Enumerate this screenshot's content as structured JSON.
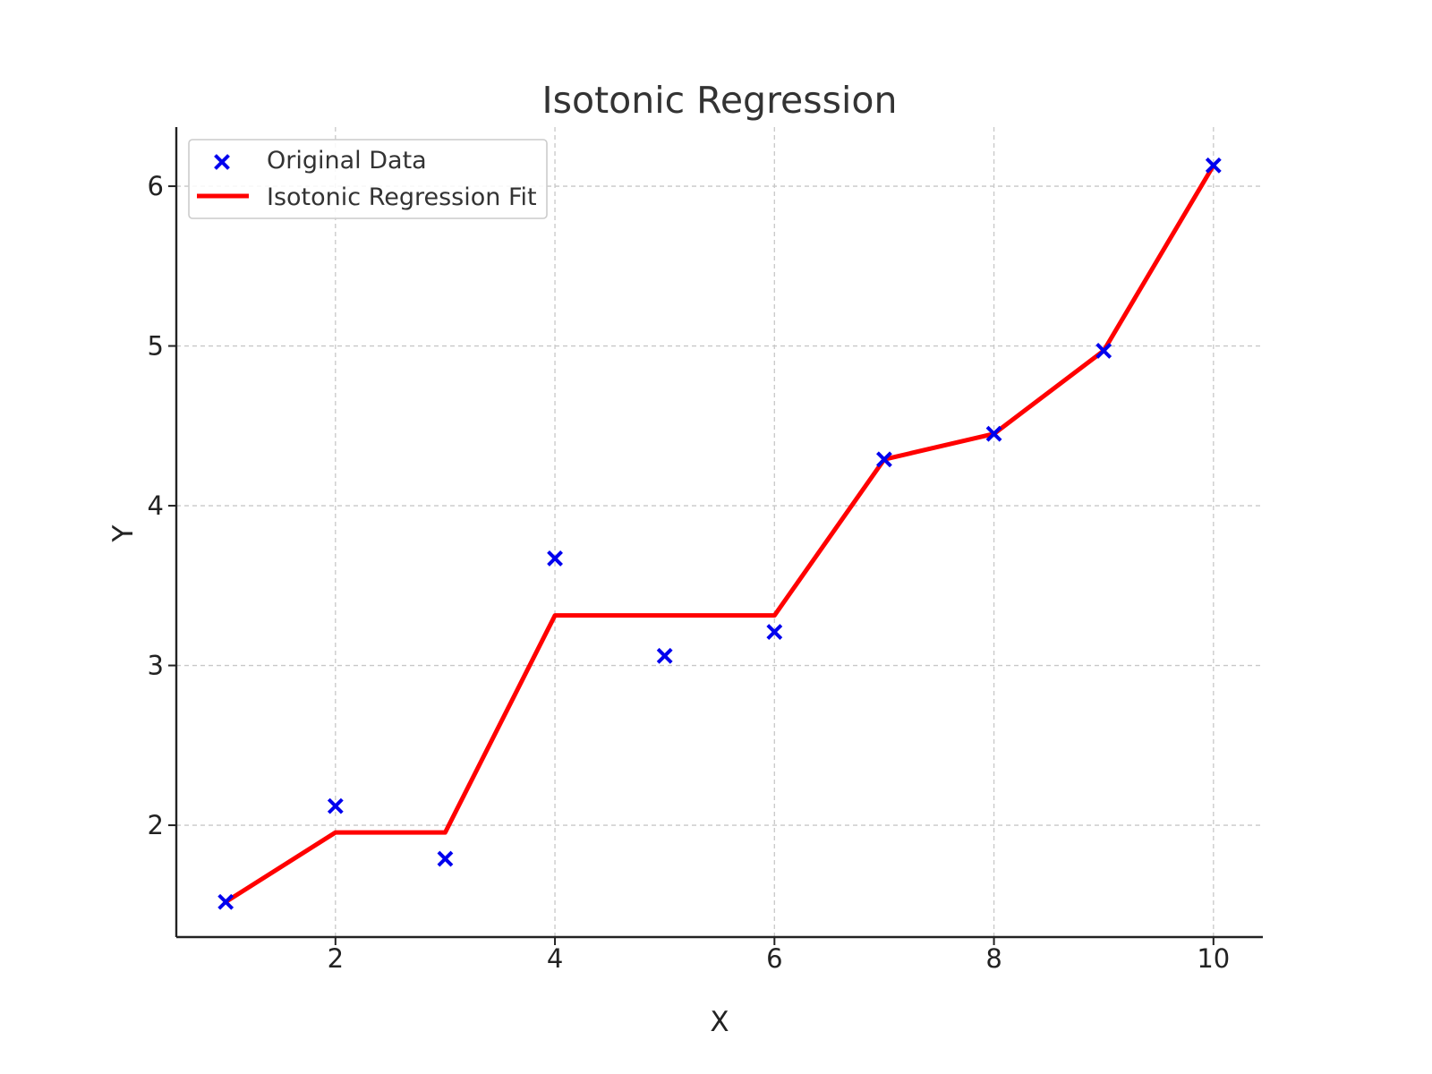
{
  "chart_data": {
    "type": "line",
    "title": "Isotonic Regression",
    "xlabel": "X",
    "ylabel": "Y",
    "xlim": [
      0.55,
      10.45
    ],
    "ylim": [
      1.3,
      6.37
    ],
    "xticks": [
      2,
      4,
      6,
      8,
      10
    ],
    "yticks": [
      2,
      3,
      4,
      5,
      6
    ],
    "grid": true,
    "legend_position": "top-left",
    "x": [
      1,
      2,
      3,
      4,
      5,
      6,
      7,
      8,
      9,
      10
    ],
    "series": [
      {
        "name": "Original Data",
        "kind": "scatter",
        "marker": "x",
        "color": "#0000ee",
        "values": [
          1.52,
          2.12,
          1.79,
          3.67,
          3.06,
          3.21,
          4.29,
          4.45,
          4.97,
          6.13
        ]
      },
      {
        "name": "Isotonic Regression Fit",
        "kind": "line",
        "color": "#ff0000",
        "values": [
          1.52,
          1.955,
          1.955,
          3.313,
          3.313,
          3.313,
          4.29,
          4.45,
          4.97,
          6.13
        ]
      }
    ]
  }
}
